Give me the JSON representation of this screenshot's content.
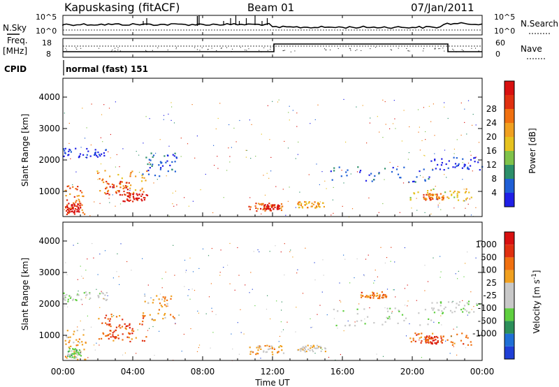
{
  "header": {
    "station": "Kapuskasing (fitACF)",
    "beam": "Beam 01",
    "date": "07/Jan/2011"
  },
  "noise_panel": {
    "left_label": "N.Sky",
    "right_label": "N.Search",
    "tick_top": "10^5",
    "tick_bottom": "10^0"
  },
  "freq_panel": {
    "left_label_1": "Freq.",
    "left_label_2": "[MHz]",
    "right_label": "Nave",
    "left_tick_top": "18",
    "left_tick_bottom": "8",
    "right_tick_top": "60",
    "right_tick_bottom": "0"
  },
  "cpid_panel": {
    "label": "CPID",
    "value": "normal (fast) 151"
  },
  "colors": {
    "power": [
      "#1f1fe6",
      "#1f5fd6",
      "#2c8f6a",
      "#7fc24a",
      "#e6c21f",
      "#f0a020",
      "#f07010",
      "#e03010",
      "#d81010"
    ],
    "velocity": [
      "#1f3fd6",
      "#1f6fd6",
      "#2c8f5a",
      "#5fcf3f",
      "#c8c8c8",
      "#c8c8c8",
      "#f0a020",
      "#f07010",
      "#e03010",
      "#d81010"
    ]
  },
  "chart_data": [
    {
      "type": "heatmap",
      "title": "Power",
      "xlabel": "Time UT",
      "ylabel": "Slant Range [km]",
      "x_ticks": [
        "00:00",
        "04:00",
        "08:00",
        "12:00",
        "16:00",
        "20:00",
        "00:00"
      ],
      "y_ticks": [
        "1000",
        "2000",
        "3000",
        "4000"
      ],
      "ylim": [
        200,
        4600
      ],
      "colorbar_label": "Power [dB]",
      "colorbar_ticks": [
        "4",
        "8",
        "12",
        "16",
        "20",
        "24",
        "28"
      ],
      "bands": [
        {
          "t0": 0.1,
          "t1": 1.3,
          "r0": 250,
          "r1": 1200,
          "level": 6
        },
        {
          "t0": 0.1,
          "t1": 1.0,
          "r0": 350,
          "r1": 650,
          "level": 8
        },
        {
          "t0": 1.9,
          "t1": 4.8,
          "r0": 800,
          "r1": 1700,
          "level": 5
        },
        {
          "t0": 2.4,
          "t1": 4.0,
          "r0": 900,
          "r1": 1350,
          "level": 7
        },
        {
          "t0": 3.4,
          "t1": 4.8,
          "r0": 700,
          "r1": 950,
          "level": 8
        },
        {
          "t0": 10.6,
          "t1": 12.6,
          "r0": 400,
          "r1": 650,
          "level": 6
        },
        {
          "t0": 11.2,
          "t1": 12.4,
          "r0": 450,
          "r1": 600,
          "level": 8
        },
        {
          "t0": 13.4,
          "t1": 15.0,
          "r0": 500,
          "r1": 700,
          "level": 5
        },
        {
          "t0": 15.3,
          "t1": 21.0,
          "r0": 1300,
          "r1": 1800,
          "level": 1
        },
        {
          "t0": 19.8,
          "t1": 23.4,
          "r0": 700,
          "r1": 1100,
          "level": 4
        },
        {
          "t0": 20.6,
          "t1": 21.8,
          "r0": 750,
          "r1": 950,
          "level": 6
        },
        {
          "t0": 0.0,
          "t1": 2.5,
          "r0": 2100,
          "r1": 2400,
          "level": 0
        },
        {
          "t0": 4.5,
          "t1": 6.5,
          "r0": 1500,
          "r1": 2300,
          "level": 1
        },
        {
          "t0": 21.0,
          "t1": 24.0,
          "r0": 1700,
          "r1": 2100,
          "level": 0
        }
      ]
    },
    {
      "type": "heatmap",
      "title": "Velocity",
      "xlabel": "Time UT",
      "ylabel": "Slant Range [km]",
      "x_ticks": [
        "00:00",
        "04:00",
        "08:00",
        "12:00",
        "16:00",
        "20:00",
        "00:00"
      ],
      "y_ticks": [
        "1000",
        "2000",
        "3000",
        "4000"
      ],
      "ylim": [
        200,
        4600
      ],
      "colorbar_label": "Velocity [m s^-1]",
      "colorbar_ticks": [
        "1000",
        "500",
        "100",
        "25",
        "-25",
        "-100",
        "-500",
        "-1000"
      ],
      "bands": [
        {
          "t0": 0.1,
          "t1": 1.3,
          "r0": 250,
          "r1": 1200,
          "level": 6
        },
        {
          "t0": 0.2,
          "t1": 1.0,
          "r0": 300,
          "r1": 600,
          "level": 3
        },
        {
          "t0": 1.9,
          "t1": 4.8,
          "r0": 800,
          "r1": 1700,
          "level": 7
        },
        {
          "t0": 2.4,
          "t1": 4.0,
          "r0": 900,
          "r1": 1400,
          "level": 8
        },
        {
          "t0": 10.6,
          "t1": 12.6,
          "r0": 400,
          "r1": 700,
          "level": 6
        },
        {
          "t0": 13.4,
          "t1": 15.0,
          "r0": 500,
          "r1": 700,
          "level": 5
        },
        {
          "t0": 15.3,
          "t1": 21.5,
          "r0": 1300,
          "r1": 1900,
          "level": 4
        },
        {
          "t0": 19.8,
          "t1": 23.4,
          "r0": 700,
          "r1": 1100,
          "level": 7
        },
        {
          "t0": 20.6,
          "t1": 21.8,
          "r0": 750,
          "r1": 1000,
          "level": 8
        },
        {
          "t0": 0.0,
          "t1": 2.5,
          "r0": 2100,
          "r1": 2400,
          "level": 4
        },
        {
          "t0": 4.5,
          "t1": 6.5,
          "r0": 1500,
          "r1": 2300,
          "level": 6
        },
        {
          "t0": 21.0,
          "t1": 24.0,
          "r0": 1700,
          "r1": 2100,
          "level": 4
        },
        {
          "t0": 17.0,
          "t1": 18.5,
          "r0": 2200,
          "r1": 2400,
          "level": 7
        }
      ]
    }
  ]
}
